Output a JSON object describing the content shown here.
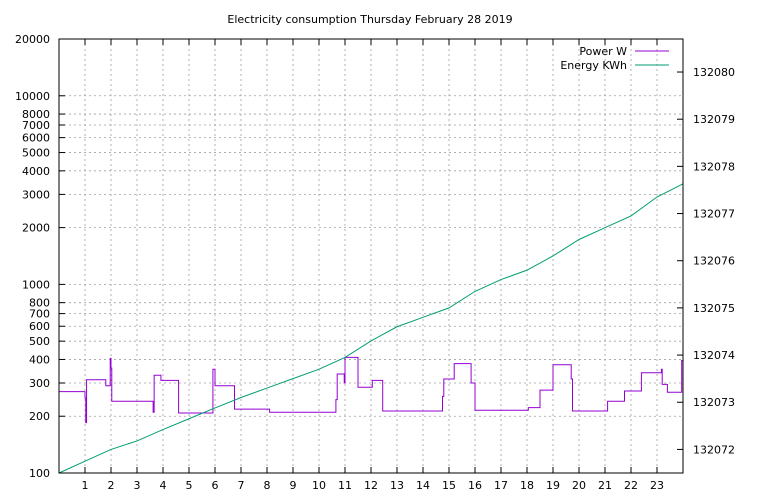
{
  "chart_data": {
    "type": "line",
    "title": "Electricity consumption Thursday February 28 2019",
    "legend_position": "top-right",
    "grid": true,
    "x_axis": {
      "range": [
        0,
        24
      ],
      "ticks": [
        1,
        2,
        3,
        4,
        5,
        6,
        7,
        8,
        9,
        10,
        11,
        12,
        13,
        14,
        15,
        16,
        17,
        18,
        19,
        20,
        21,
        22,
        23
      ],
      "tick_labels": [
        "1",
        "2",
        "3",
        "4",
        "5",
        "6",
        "7",
        "8",
        "9",
        "10",
        "11",
        "12",
        "13",
        "14",
        "15",
        "16",
        "17",
        "18",
        "19",
        "20",
        "21",
        "22",
        "23"
      ]
    },
    "y_axis": {
      "scale": "log",
      "range": [
        100,
        20000
      ],
      "ticks": [
        100,
        200,
        300,
        400,
        500,
        600,
        700,
        800,
        1000,
        2000,
        3000,
        4000,
        5000,
        6000,
        7000,
        8000,
        10000,
        20000
      ],
      "tick_labels": [
        "100",
        "200",
        "300",
        "400",
        "500",
        "600",
        "700",
        "800",
        "1000",
        "2000",
        "3000",
        "4000",
        "5000",
        "6000",
        "7000",
        "8000",
        "10000",
        "20000"
      ]
    },
    "y2_axis": {
      "scale": "linear",
      "range": [
        132071.5,
        132080.7
      ],
      "ticks": [
        132072,
        132073,
        132074,
        132075,
        132076,
        132077,
        132078,
        132079,
        132080
      ],
      "tick_labels": [
        "132072",
        "132073",
        "132074",
        "132075",
        "132076",
        "132077",
        "132078",
        "132079",
        "132080"
      ]
    },
    "series": [
      {
        "name": "Power W",
        "axis": "y",
        "color": "#9400d3",
        "step": true,
        "points": [
          [
            0,
            270
          ],
          [
            0.95,
            270
          ],
          [
            1.0,
            250
          ],
          [
            1.03,
            185
          ],
          [
            1.06,
            312
          ],
          [
            1.75,
            312
          ],
          [
            1.8,
            290
          ],
          [
            1.95,
            290
          ],
          [
            1.97,
            405
          ],
          [
            2.0,
            360
          ],
          [
            2.03,
            240
          ],
          [
            3.6,
            240
          ],
          [
            3.62,
            210
          ],
          [
            3.66,
            330
          ],
          [
            3.9,
            330
          ],
          [
            3.92,
            310
          ],
          [
            4.55,
            310
          ],
          [
            4.6,
            208
          ],
          [
            5.9,
            208
          ],
          [
            5.92,
            355
          ],
          [
            6.0,
            290
          ],
          [
            6.7,
            290
          ],
          [
            6.75,
            218
          ],
          [
            8.05,
            218
          ],
          [
            8.1,
            210
          ],
          [
            10.6,
            210
          ],
          [
            10.65,
            245
          ],
          [
            10.7,
            335
          ],
          [
            10.95,
            335
          ],
          [
            10.97,
            300
          ],
          [
            11.0,
            410
          ],
          [
            11.45,
            410
          ],
          [
            11.5,
            285
          ],
          [
            12.0,
            285
          ],
          [
            12.05,
            310
          ],
          [
            12.4,
            310
          ],
          [
            12.45,
            213
          ],
          [
            14.7,
            213
          ],
          [
            14.75,
            255
          ],
          [
            14.8,
            315
          ],
          [
            15.15,
            315
          ],
          [
            15.2,
            380
          ],
          [
            15.8,
            380
          ],
          [
            15.85,
            300
          ],
          [
            16.0,
            215
          ],
          [
            18.0,
            215
          ],
          [
            18.05,
            222
          ],
          [
            18.45,
            222
          ],
          [
            18.5,
            275
          ],
          [
            18.95,
            275
          ],
          [
            19.0,
            375
          ],
          [
            19.6,
            375
          ],
          [
            19.7,
            315
          ],
          [
            19.75,
            213
          ],
          [
            21.05,
            213
          ],
          [
            21.1,
            240
          ],
          [
            21.7,
            240
          ],
          [
            21.75,
            272
          ],
          [
            22.35,
            272
          ],
          [
            22.4,
            340
          ],
          [
            23.15,
            340
          ],
          [
            23.17,
            355
          ],
          [
            23.2,
            295
          ],
          [
            23.35,
            295
          ],
          [
            23.4,
            268
          ],
          [
            23.9,
            268
          ],
          [
            23.95,
            395
          ],
          [
            24,
            395
          ]
        ]
      },
      {
        "name": "Energy KWh",
        "axis": "y2",
        "color": "#009e73",
        "step": false,
        "points": [
          [
            0,
            132071.5
          ],
          [
            1,
            132071.75
          ],
          [
            2,
            132072.0
          ],
          [
            3,
            132072.18
          ],
          [
            4,
            132072.42
          ],
          [
            5,
            132072.65
          ],
          [
            6,
            132072.88
          ],
          [
            7,
            132073.1
          ],
          [
            8,
            132073.3
          ],
          [
            9,
            132073.5
          ],
          [
            10,
            132073.7
          ],
          [
            11,
            132073.95
          ],
          [
            12,
            132074.3
          ],
          [
            13,
            132074.6
          ],
          [
            14,
            132074.8
          ],
          [
            15,
            132075.0
          ],
          [
            16,
            132075.35
          ],
          [
            17,
            132075.6
          ],
          [
            18,
            132075.8
          ],
          [
            19,
            132076.1
          ],
          [
            20,
            132076.45
          ],
          [
            21,
            132076.7
          ],
          [
            22,
            132076.95
          ],
          [
            23,
            132077.35
          ],
          [
            24,
            132077.63
          ]
        ]
      }
    ]
  }
}
